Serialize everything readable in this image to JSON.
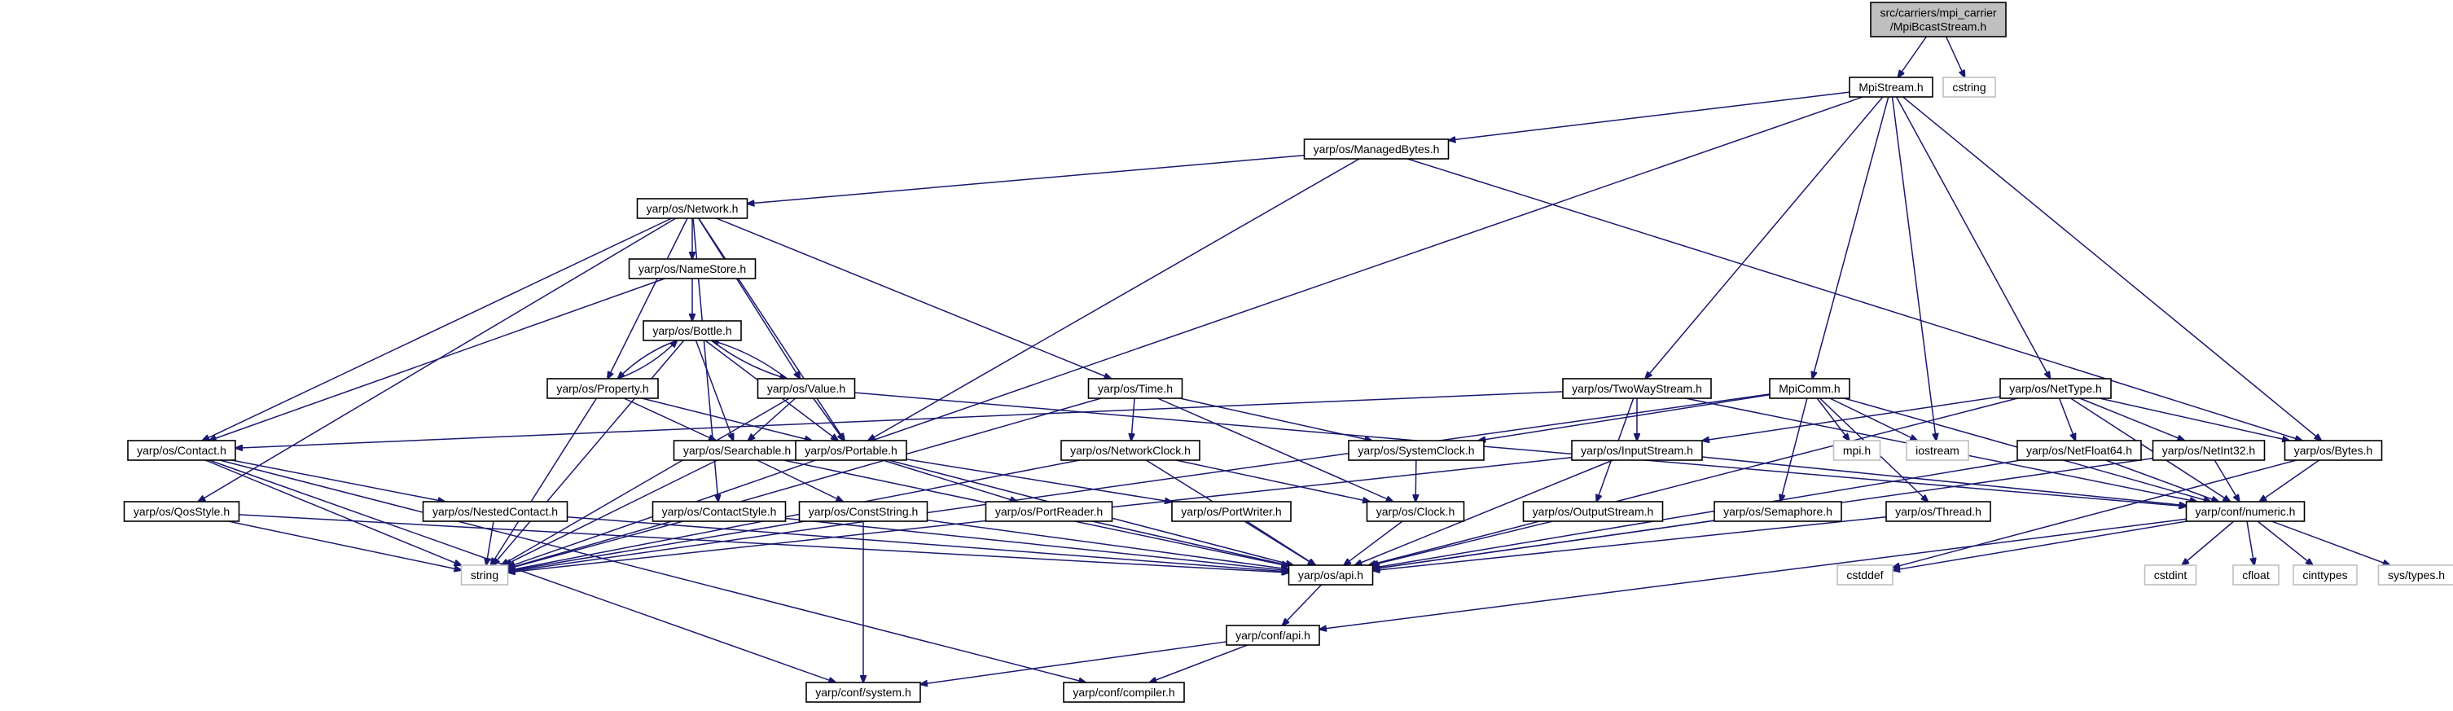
{
  "graph": {
    "colors": {
      "edge": "#191970",
      "root_fill": "#bfbfbf",
      "node_border": "#000000",
      "external_border": "#bfbfbf",
      "node_fill": "#ffffff",
      "text": "#000000"
    },
    "nodes": [
      {
        "id": "root",
        "label_lines": [
          "src/carriers/mpi_carrier",
          "/MpiBcastStream.h"
        ],
        "style": "root"
      },
      {
        "id": "mpistream",
        "label_lines": [
          "MpiStream.h"
        ],
        "style": "normal"
      },
      {
        "id": "cstring",
        "label_lines": [
          "cstring"
        ],
        "style": "external"
      },
      {
        "id": "managedbytes",
        "label_lines": [
          "yarp/os/ManagedBytes.h"
        ],
        "style": "normal"
      },
      {
        "id": "network",
        "label_lines": [
          "yarp/os/Network.h"
        ],
        "style": "normal"
      },
      {
        "id": "namestore",
        "label_lines": [
          "yarp/os/NameStore.h"
        ],
        "style": "normal"
      },
      {
        "id": "bottle",
        "label_lines": [
          "yarp/os/Bottle.h"
        ],
        "style": "normal"
      },
      {
        "id": "property",
        "label_lines": [
          "yarp/os/Property.h"
        ],
        "style": "normal"
      },
      {
        "id": "value",
        "label_lines": [
          "yarp/os/Value.h"
        ],
        "style": "normal"
      },
      {
        "id": "time",
        "label_lines": [
          "yarp/os/Time.h"
        ],
        "style": "normal"
      },
      {
        "id": "twowaystream",
        "label_lines": [
          "yarp/os/TwoWayStream.h"
        ],
        "style": "normal"
      },
      {
        "id": "mpicomm",
        "label_lines": [
          "MpiComm.h"
        ],
        "style": "normal"
      },
      {
        "id": "nettype",
        "label_lines": [
          "yarp/os/NetType.h"
        ],
        "style": "normal"
      },
      {
        "id": "contact",
        "label_lines": [
          "yarp/os/Contact.h"
        ],
        "style": "normal"
      },
      {
        "id": "searchable",
        "label_lines": [
          "yarp/os/Searchable.h"
        ],
        "style": "normal"
      },
      {
        "id": "portable",
        "label_lines": [
          "yarp/os/Portable.h"
        ],
        "style": "normal"
      },
      {
        "id": "networkclock",
        "label_lines": [
          "yarp/os/NetworkClock.h"
        ],
        "style": "normal"
      },
      {
        "id": "systemclock",
        "label_lines": [
          "yarp/os/SystemClock.h"
        ],
        "style": "normal"
      },
      {
        "id": "inputstream",
        "label_lines": [
          "yarp/os/InputStream.h"
        ],
        "style": "normal"
      },
      {
        "id": "mpih",
        "label_lines": [
          "mpi.h"
        ],
        "style": "external"
      },
      {
        "id": "iostream",
        "label_lines": [
          "iostream"
        ],
        "style": "external"
      },
      {
        "id": "netfloat64",
        "label_lines": [
          "yarp/os/NetFloat64.h"
        ],
        "style": "normal"
      },
      {
        "id": "netint32",
        "label_lines": [
          "yarp/os/NetInt32.h"
        ],
        "style": "normal"
      },
      {
        "id": "bytes",
        "label_lines": [
          "yarp/os/Bytes.h"
        ],
        "style": "normal"
      },
      {
        "id": "qosstyle",
        "label_lines": [
          "yarp/os/QosStyle.h"
        ],
        "style": "normal"
      },
      {
        "id": "nestedcontact",
        "label_lines": [
          "yarp/os/NestedContact.h"
        ],
        "style": "normal"
      },
      {
        "id": "contactstyle",
        "label_lines": [
          "yarp/os/ContactStyle.h"
        ],
        "style": "normal"
      },
      {
        "id": "conststring",
        "label_lines": [
          "yarp/os/ConstString.h"
        ],
        "style": "normal"
      },
      {
        "id": "portreader",
        "label_lines": [
          "yarp/os/PortReader.h"
        ],
        "style": "normal"
      },
      {
        "id": "portwriter",
        "label_lines": [
          "yarp/os/PortWriter.h"
        ],
        "style": "normal"
      },
      {
        "id": "clock",
        "label_lines": [
          "yarp/os/Clock.h"
        ],
        "style": "normal"
      },
      {
        "id": "outputstream",
        "label_lines": [
          "yarp/os/OutputStream.h"
        ],
        "style": "normal"
      },
      {
        "id": "semaphore",
        "label_lines": [
          "yarp/os/Semaphore.h"
        ],
        "style": "normal"
      },
      {
        "id": "thread",
        "label_lines": [
          "yarp/os/Thread.h"
        ],
        "style": "normal"
      },
      {
        "id": "numeric",
        "label_lines": [
          "yarp/conf/numeric.h"
        ],
        "style": "normal"
      },
      {
        "id": "string",
        "label_lines": [
          "string"
        ],
        "style": "external"
      },
      {
        "id": "osapi",
        "label_lines": [
          "yarp/os/api.h"
        ],
        "style": "normal"
      },
      {
        "id": "cstddef",
        "label_lines": [
          "cstddef"
        ],
        "style": "external"
      },
      {
        "id": "cstdint",
        "label_lines": [
          "cstdint"
        ],
        "style": "external"
      },
      {
        "id": "cfloat",
        "label_lines": [
          "cfloat"
        ],
        "style": "external"
      },
      {
        "id": "cinttypes",
        "label_lines": [
          "cinttypes"
        ],
        "style": "external"
      },
      {
        "id": "systypes",
        "label_lines": [
          "sys/types.h"
        ],
        "style": "external"
      },
      {
        "id": "confapi",
        "label_lines": [
          "yarp/conf/api.h"
        ],
        "style": "normal"
      },
      {
        "id": "system",
        "label_lines": [
          "yarp/conf/system.h"
        ],
        "style": "normal"
      },
      {
        "id": "compiler",
        "label_lines": [
          "yarp/conf/compiler.h"
        ],
        "style": "normal"
      }
    ],
    "edges": [
      [
        "root",
        "mpistream"
      ],
      [
        "root",
        "cstring"
      ],
      [
        "mpistream",
        "managedbytes"
      ],
      [
        "mpistream",
        "string"
      ],
      [
        "mpistream",
        "twowaystream"
      ],
      [
        "mpistream",
        "mpicomm"
      ],
      [
        "mpistream",
        "iostream"
      ],
      [
        "mpistream",
        "nettype"
      ],
      [
        "mpistream",
        "bytes"
      ],
      [
        "managedbytes",
        "network"
      ],
      [
        "managedbytes",
        "portable"
      ],
      [
        "managedbytes",
        "bytes"
      ],
      [
        "network",
        "namestore"
      ],
      [
        "network",
        "contact"
      ],
      [
        "network",
        "property"
      ],
      [
        "network",
        "value"
      ],
      [
        "network",
        "portable"
      ],
      [
        "network",
        "time"
      ],
      [
        "network",
        "qosstyle"
      ],
      [
        "network",
        "contactstyle"
      ],
      [
        "namestore",
        "bottle"
      ],
      [
        "namestore",
        "contact"
      ],
      [
        "bottle",
        "property"
      ],
      [
        "bottle",
        "value"
      ],
      [
        "bottle",
        "searchable"
      ],
      [
        "bottle",
        "portable"
      ],
      [
        "bottle",
        "string"
      ],
      [
        "property",
        "bottle"
      ],
      [
        "property",
        "searchable"
      ],
      [
        "property",
        "portable"
      ],
      [
        "property",
        "string"
      ],
      [
        "value",
        "bottle"
      ],
      [
        "value",
        "searchable"
      ],
      [
        "value",
        "portable"
      ],
      [
        "value",
        "string"
      ],
      [
        "value",
        "numeric"
      ],
      [
        "time",
        "networkclock"
      ],
      [
        "time",
        "systemclock"
      ],
      [
        "time",
        "clock"
      ],
      [
        "time",
        "string"
      ],
      [
        "twowaystream",
        "contact"
      ],
      [
        "twowaystream",
        "inputstream"
      ],
      [
        "twowaystream",
        "outputstream"
      ],
      [
        "twowaystream",
        "numeric"
      ],
      [
        "mpicomm",
        "systemclock"
      ],
      [
        "mpicomm",
        "mpih"
      ],
      [
        "mpicomm",
        "iostream"
      ],
      [
        "mpicomm",
        "semaphore"
      ],
      [
        "mpicomm",
        "thread"
      ],
      [
        "mpicomm",
        "string"
      ],
      [
        "mpicomm",
        "numeric"
      ],
      [
        "nettype",
        "inputstream"
      ],
      [
        "nettype",
        "netfloat64"
      ],
      [
        "nettype",
        "netint32"
      ],
      [
        "nettype",
        "bytes"
      ],
      [
        "nettype",
        "numeric"
      ],
      [
        "nettype",
        "osapi"
      ],
      [
        "contact",
        "nestedcontact"
      ],
      [
        "contact",
        "string"
      ],
      [
        "contact",
        "system"
      ],
      [
        "contact",
        "compiler"
      ],
      [
        "searchable",
        "conststring"
      ],
      [
        "searchable",
        "string"
      ],
      [
        "searchable",
        "osapi"
      ],
      [
        "portable",
        "portreader"
      ],
      [
        "portable",
        "portwriter"
      ],
      [
        "portable",
        "osapi"
      ],
      [
        "networkclock",
        "clock"
      ],
      [
        "networkclock",
        "osapi"
      ],
      [
        "networkclock",
        "string"
      ],
      [
        "systemclock",
        "clock"
      ],
      [
        "inputstream",
        "numeric"
      ],
      [
        "inputstream",
        "osapi"
      ],
      [
        "inputstream",
        "string"
      ],
      [
        "netfloat64",
        "numeric"
      ],
      [
        "netfloat64",
        "osapi"
      ],
      [
        "netint32",
        "numeric"
      ],
      [
        "netint32",
        "osapi"
      ],
      [
        "bytes",
        "numeric"
      ],
      [
        "bytes",
        "cstddef"
      ],
      [
        "qosstyle",
        "string"
      ],
      [
        "qosstyle",
        "osapi"
      ],
      [
        "nestedcontact",
        "string"
      ],
      [
        "nestedcontact",
        "osapi"
      ],
      [
        "contactstyle",
        "string"
      ],
      [
        "contactstyle",
        "osapi"
      ],
      [
        "conststring",
        "string"
      ],
      [
        "conststring",
        "osapi"
      ],
      [
        "conststring",
        "system"
      ],
      [
        "portreader",
        "osapi"
      ],
      [
        "portwriter",
        "osapi"
      ],
      [
        "clock",
        "osapi"
      ],
      [
        "outputstream",
        "osapi"
      ],
      [
        "semaphore",
        "osapi"
      ],
      [
        "thread",
        "osapi"
      ],
      [
        "numeric",
        "cstddef"
      ],
      [
        "numeric",
        "cstdint"
      ],
      [
        "numeric",
        "cfloat"
      ],
      [
        "numeric",
        "cinttypes"
      ],
      [
        "numeric",
        "systypes"
      ],
      [
        "numeric",
        "confapi"
      ],
      [
        "osapi",
        "confapi"
      ],
      [
        "confapi",
        "system"
      ],
      [
        "confapi",
        "compiler"
      ]
    ]
  }
}
